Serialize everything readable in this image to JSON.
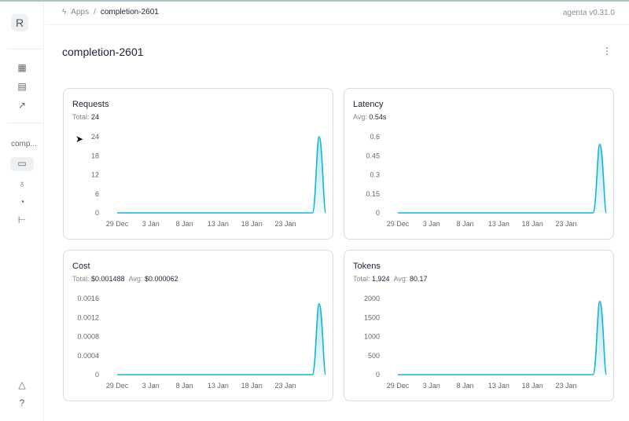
{
  "sidebar": {
    "logo": "R",
    "app_label": "comp...",
    "icons": [
      "grid-icon",
      "table-icon",
      "chart-icon",
      "monitor-icon",
      "rocket-icon",
      "analytics-icon",
      "tree-icon",
      "alert-icon",
      "help-icon"
    ]
  },
  "header": {
    "breadcrumb": [
      "Apps",
      "completion-2601"
    ],
    "version": "agenta v0.31.0"
  },
  "page": {
    "title": "completion-2601"
  },
  "accent": "#19b4cf",
  "cards": [
    {
      "title": "Requests",
      "stats": [
        {
          "label": "Total:",
          "value": "24"
        }
      ]
    },
    {
      "title": "Latency",
      "stats": [
        {
          "label": "Avg:",
          "value": "0.54s"
        }
      ]
    },
    {
      "title": "Cost",
      "stats": [
        {
          "label": "Total:",
          "value": "$0.001488"
        },
        {
          "label": "Avg:",
          "value": "$0.000062"
        }
      ]
    },
    {
      "title": "Tokens",
      "stats": [
        {
          "label": "Total:",
          "value": "1,924"
        },
        {
          "label": "Avg:",
          "value": "80.17"
        }
      ]
    }
  ],
  "chart_data": [
    {
      "type": "area",
      "x_ticks": [
        "29 Dec",
        "3 Jan",
        "8 Jan",
        "13 Jan",
        "18 Jan",
        "23 Jan"
      ],
      "y_ticks": [
        "0",
        "6",
        "12",
        "18",
        "24"
      ],
      "ylim": [
        0,
        24
      ],
      "points": [
        [
          "29 Dec",
          0
        ],
        [
          "27 Jan",
          0
        ],
        [
          "28 Jan",
          24
        ],
        [
          "29 Jan",
          0
        ]
      ]
    },
    {
      "type": "area",
      "x_ticks": [
        "29 Dec",
        "3 Jan",
        "8 Jan",
        "13 Jan",
        "18 Jan",
        "23 Jan"
      ],
      "y_ticks": [
        "0",
        "0.15",
        "0.3",
        "0.45",
        "0.6"
      ],
      "ylim": [
        0,
        0.6
      ],
      "points": [
        [
          "29 Dec",
          0
        ],
        [
          "27 Jan",
          0
        ],
        [
          "28 Jan",
          0.54
        ],
        [
          "29 Jan",
          0
        ]
      ]
    },
    {
      "type": "area",
      "x_ticks": [
        "29 Dec",
        "3 Jan",
        "8 Jan",
        "13 Jan",
        "18 Jan",
        "23 Jan"
      ],
      "y_ticks": [
        "0",
        "0.0004",
        "0.0008",
        "0.0012",
        "0.0016"
      ],
      "ylim": [
        0,
        0.0016
      ],
      "points": [
        [
          "29 Dec",
          0
        ],
        [
          "27 Jan",
          0
        ],
        [
          "28 Jan",
          0.001488
        ],
        [
          "29 Jan",
          0
        ]
      ]
    },
    {
      "type": "area",
      "x_ticks": [
        "29 Dec",
        "3 Jan",
        "8 Jan",
        "13 Jan",
        "18 Jan",
        "23 Jan"
      ],
      "y_ticks": [
        "0",
        "500",
        "1000",
        "1500",
        "2000"
      ],
      "ylim": [
        0,
        2000
      ],
      "points": [
        [
          "29 Dec",
          0
        ],
        [
          "27 Jan",
          0
        ],
        [
          "28 Jan",
          1924
        ],
        [
          "29 Jan",
          0
        ]
      ]
    }
  ]
}
